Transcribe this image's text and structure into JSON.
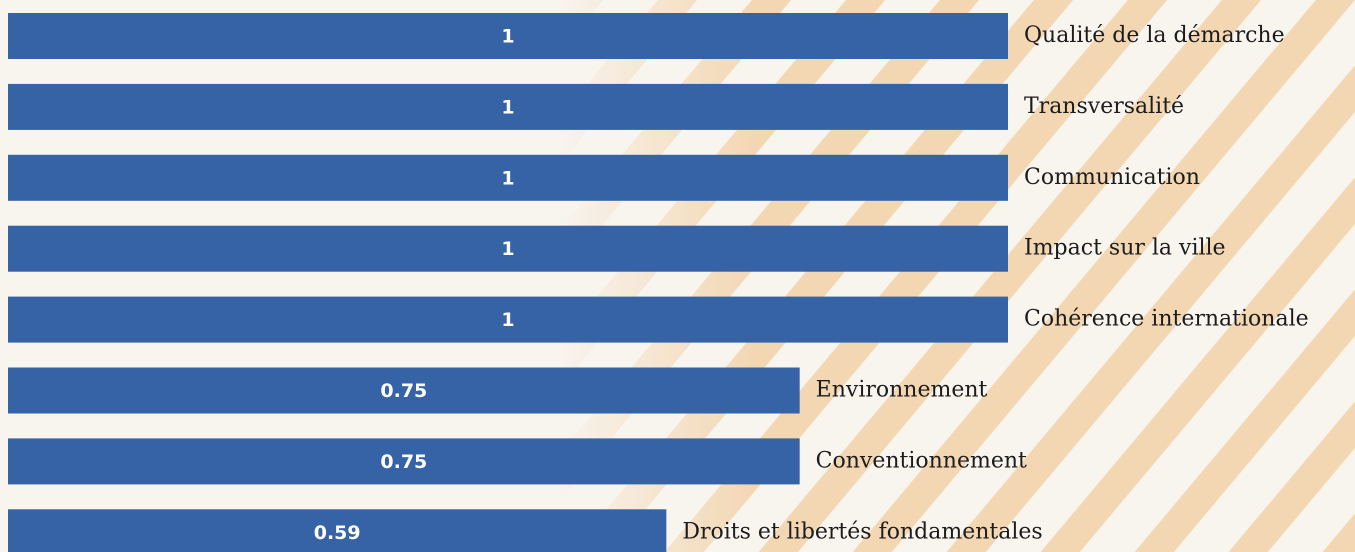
{
  "chart_data": {
    "type": "bar",
    "orientation": "horizontal",
    "categories": [
      "Qualité de la démarche",
      "Transversalité",
      "Communication",
      "Impact sur la ville",
      "Cohérence internationale",
      "Environnement",
      "Conventionnement",
      "Droits et libertés fondamentales"
    ],
    "values": [
      1,
      1,
      1,
      1,
      1,
      0.75,
      0.75,
      0.59
    ],
    "color": "#3563a5",
    "xlim": [
      -0.2,
      1
    ]
  }
}
